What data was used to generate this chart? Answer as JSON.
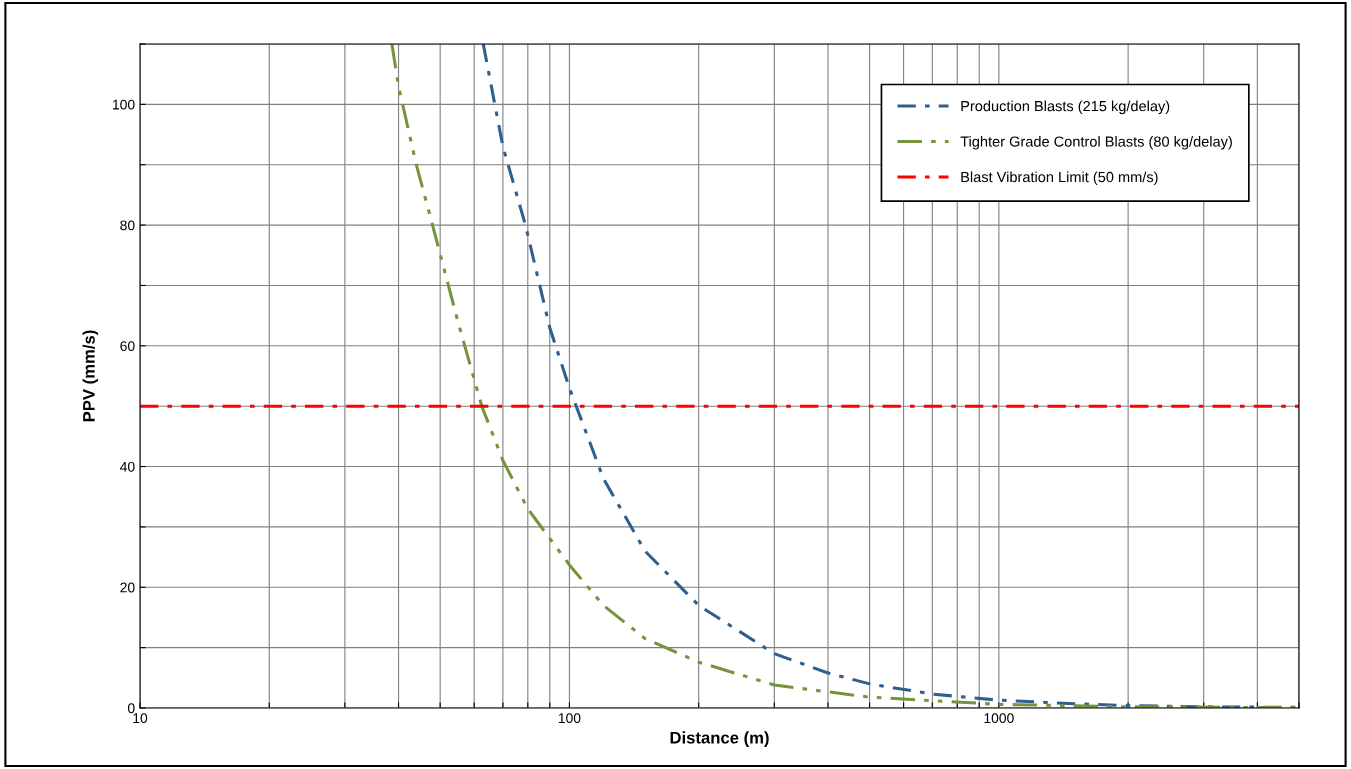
{
  "chart_data": {
    "type": "line",
    "xlabel": "Distance (m)",
    "ylabel": "PPV (mm/s)",
    "log": "x",
    "xlim": [
      10,
      5000
    ],
    "ylim": [
      0,
      110
    ],
    "xticks": [
      10,
      {
        "value": 20,
        "label": null
      },
      {
        "value": 30,
        "label": null
      },
      {
        "value": 40,
        "label": null
      },
      {
        "value": 50,
        "label": null
      },
      {
        "value": 60,
        "label": null
      },
      {
        "value": 70,
        "label": null
      },
      {
        "value": 80,
        "label": null
      },
      {
        "value": 90,
        "label": null
      },
      100,
      {
        "value": 200,
        "label": null
      },
      {
        "value": 300,
        "label": null
      },
      {
        "value": 400,
        "label": null
      },
      {
        "value": 500,
        "label": null
      },
      {
        "value": 600,
        "label": null
      },
      {
        "value": 700,
        "label": null
      },
      {
        "value": 800,
        "label": null
      },
      {
        "value": 900,
        "label": null
      },
      1000,
      {
        "value": 2000,
        "label": null
      },
      {
        "value": 3000,
        "label": null
      },
      {
        "value": 4000,
        "label": null
      },
      {
        "value": 5000,
        "label": null
      }
    ],
    "yticks": [
      0,
      {
        "value": 10,
        "label": null
      },
      20,
      {
        "value": 30,
        "label": null
      },
      40,
      {
        "value": 50,
        "label": null
      },
      60,
      {
        "value": 70,
        "label": null
      },
      80,
      {
        "value": 90,
        "label": null
      },
      100,
      {
        "value": 110,
        "label": null
      }
    ],
    "grid": true,
    "legend": "top right",
    "marker": "none",
    "series": [
      {
        "name": "Production Blasts (215 kg/delay)",
        "color": "#2f5f8f",
        "line_style": "dashdot",
        "x": [
          63,
          70,
          79,
          90,
          100,
          120,
          150,
          200,
          300,
          400,
          500,
          700,
          1000,
          1500,
          2000,
          3000,
          5000
        ],
        "values": [
          110,
          93,
          80,
          63,
          53,
          38,
          26,
          17,
          9,
          5.8,
          4,
          2.3,
          1.3,
          0.7,
          0.4,
          0.2,
          0.1
        ]
      },
      {
        "name": "Tighter Grade Control Blasts (80 kg/delay)",
        "color": "#77933c",
        "line_style": "dashdotdot",
        "x": [
          38.6,
          40,
          44,
          48,
          55,
          62.5,
          70,
          80,
          100,
          120,
          150,
          200,
          300,
          500,
          1000,
          2000,
          5000
        ],
        "values": [
          110,
          103,
          90,
          80,
          64,
          50,
          41,
          33,
          23.7,
          17,
          11.5,
          7.6,
          3.8,
          1.8,
          0.6,
          0.2,
          0.05
        ]
      }
    ],
    "ref_lines": [
      {
        "axis": "y",
        "value": 50,
        "label": "Blast Vibration Limit (50 mm/s)",
        "color": "#ff0000",
        "line_style": "dashdot"
      }
    ]
  }
}
